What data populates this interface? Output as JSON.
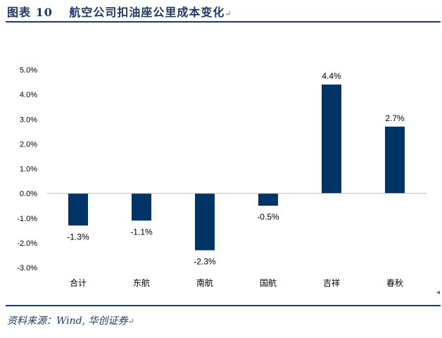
{
  "figure": {
    "title": "图表 10　 航空公司扣油座公里成本变化",
    "source": "资料来源：Wind, 华创证券",
    "paragraph_mark": "↵"
  },
  "colors": {
    "bar": "#003366",
    "rule": "#1f3864",
    "axis_line": "#bfbfbf",
    "text": "#000000"
  },
  "chart_data": {
    "type": "bar",
    "title": "",
    "xlabel": "",
    "ylabel": "",
    "categories": [
      "合计",
      "东航",
      "南航",
      "国航",
      "吉祥",
      "春秋"
    ],
    "values": [
      -1.3,
      -1.1,
      -2.3,
      -0.5,
      4.4,
      2.7
    ],
    "data_labels": [
      "-1.3%",
      "-1.1%",
      "-2.3%",
      "-0.5%",
      "4.4%",
      "2.7%"
    ],
    "y_ticks": [
      5.0,
      4.0,
      3.0,
      2.0,
      1.0,
      0.0,
      -1.0,
      -2.0,
      -3.0
    ],
    "y_tick_labels": [
      "5.0%",
      "4.0%",
      "3.0%",
      "2.0%",
      "1.0%",
      "0.0%",
      "-1.0%",
      "-2.0%",
      "-3.0%"
    ],
    "ylim": [
      -3.0,
      5.0
    ],
    "grid": false,
    "legend": "none"
  }
}
